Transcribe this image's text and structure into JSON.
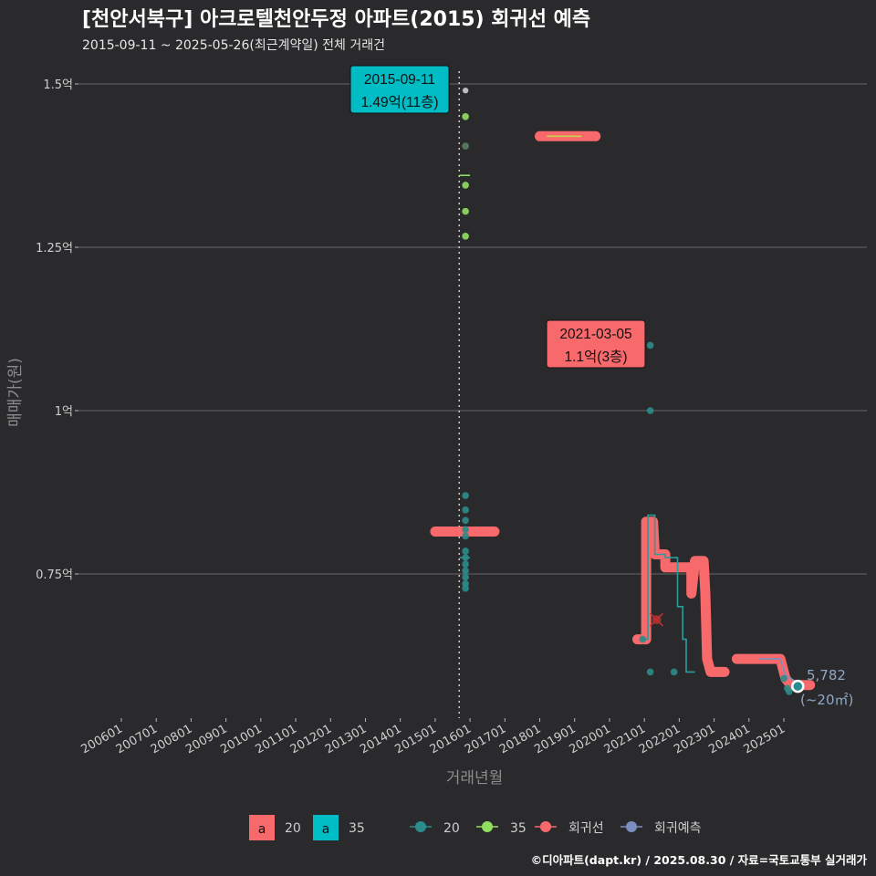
{
  "chart_data": {
    "type": "line",
    "title": "[천안서북구] 아크로텔천안두정 아파트(2015) 회귀선 예측",
    "subtitle": "2015-09-11 ~ 2025-05-26(최근계약일) 전체 거래건",
    "xlabel": "거래년월",
    "ylabel": "매매가(원)",
    "caption": "©디아파트(dapt.kr) / 2025.08.30 / 자료=국토교통부 실거래가",
    "x_range": [
      2006.0,
      2025.9
    ],
    "ylim": [
      0.55,
      1.53
    ],
    "x_ticks": [
      {
        "x": 2006,
        "label": "200601"
      },
      {
        "x": 2007,
        "label": "200701"
      },
      {
        "x": 2008,
        "label": "200801"
      },
      {
        "x": 2009,
        "label": "200901"
      },
      {
        "x": 2010,
        "label": "201001"
      },
      {
        "x": 2011,
        "label": "201101"
      },
      {
        "x": 2012,
        "label": "201201"
      },
      {
        "x": 2013,
        "label": "201301"
      },
      {
        "x": 2014,
        "label": "201401"
      },
      {
        "x": 2015,
        "label": "201501"
      },
      {
        "x": 2016,
        "label": "201601"
      },
      {
        "x": 2017,
        "label": "201701"
      },
      {
        "x": 2018,
        "label": "201801"
      },
      {
        "x": 2019,
        "label": "201901"
      },
      {
        "x": 2020,
        "label": "202001"
      },
      {
        "x": 2021,
        "label": "202101"
      },
      {
        "x": 2022,
        "label": "202201"
      },
      {
        "x": 2023,
        "label": "202301"
      },
      {
        "x": 2024,
        "label": "202401"
      },
      {
        "x": 2025,
        "label": "202501"
      }
    ],
    "y_ticks": [
      {
        "y": 0.75,
        "label": "0.75억"
      },
      {
        "y": 1.0,
        "label": "1억"
      },
      {
        "y": 1.25,
        "label": "1.25억"
      },
      {
        "y": 1.5,
        "label": "1.5억"
      }
    ],
    "vline_x": 2015.69,
    "legend": {
      "labels": [
        {
          "key": "a",
          "name": "20",
          "color": "#f8696b"
        },
        {
          "key": "a",
          "name": "35",
          "color": "#00bcc4"
        }
      ],
      "series": [
        {
          "name": "20",
          "color": "#2a8c8c"
        },
        {
          "name": "35",
          "color": "#90e060"
        },
        {
          "name": "회귀선",
          "color": "#f8696b"
        },
        {
          "name": "회귀예측",
          "color": "#7a8fc0"
        }
      ]
    },
    "scatter_20": [
      [
        2015.87,
        0.87
      ],
      [
        2015.87,
        0.848
      ],
      [
        2015.87,
        0.832
      ],
      [
        2015.87,
        0.818
      ],
      [
        2015.87,
        0.808
      ],
      [
        2015.87,
        0.785
      ],
      [
        2015.87,
        0.775
      ],
      [
        2015.87,
        0.765
      ],
      [
        2015.87,
        0.755
      ],
      [
        2015.87,
        0.745
      ],
      [
        2015.87,
        0.735
      ],
      [
        2015.87,
        0.728
      ],
      [
        2020.95,
        0.65
      ],
      [
        2021.17,
        1.1
      ],
      [
        2021.17,
        1.0
      ],
      [
        2021.17,
        0.6
      ],
      [
        2021.85,
        0.6
      ],
      [
        2025.0,
        0.59
      ],
      [
        2025.1,
        0.575
      ],
      [
        2025.15,
        0.57
      ]
    ],
    "scatter_20_faded": [
      [
        2015.87,
        1.405
      ]
    ],
    "scatter_35": [
      [
        2015.87,
        1.45
      ],
      [
        2015.87,
        1.345
      ],
      [
        2015.87,
        1.305
      ],
      [
        2015.87,
        1.267
      ]
    ],
    "scatter_35_faded": [
      [
        2015.87,
        1.49
      ]
    ],
    "series_20_step": [
      [
        2015.7,
        0.775
      ],
      [
        2016.0,
        0.775
      ]
    ],
    "series_20_line": [
      [
        2020.9,
        0.65
      ],
      [
        2021.1,
        0.65
      ],
      [
        2021.1,
        0.84
      ],
      [
        2021.3,
        0.84
      ],
      [
        2021.3,
        0.78
      ],
      [
        2021.6,
        0.78
      ],
      [
        2021.6,
        0.775
      ],
      [
        2021.95,
        0.775
      ],
      [
        2021.95,
        0.7
      ],
      [
        2022.1,
        0.7
      ],
      [
        2022.1,
        0.65
      ],
      [
        2022.2,
        0.65
      ],
      [
        2022.2,
        0.6
      ],
      [
        2022.45,
        0.6
      ]
    ],
    "series_35_line": [
      [
        2015.7,
        1.36
      ],
      [
        2016.0,
        1.36
      ]
    ],
    "series_35_upper": [
      [
        2018.2,
        1.42
      ],
      [
        2019.2,
        1.42
      ]
    ],
    "regression": [
      {
        "points": [
          [
            2015.0,
            0.815
          ],
          [
            2016.7,
            0.815
          ]
        ]
      },
      {
        "points": [
          [
            2018.0,
            1.42
          ],
          [
            2019.6,
            1.42
          ]
        ]
      },
      {
        "points": [
          [
            2020.8,
            0.65
          ],
          [
            2021.05,
            0.65
          ],
          [
            2021.05,
            0.83
          ],
          [
            2021.25,
            0.83
          ],
          [
            2021.3,
            0.78
          ],
          [
            2021.6,
            0.78
          ],
          [
            2021.6,
            0.76
          ],
          [
            2022.35,
            0.76
          ],
          [
            2022.35,
            0.72
          ],
          [
            2022.45,
            0.77
          ],
          [
            2022.7,
            0.77
          ],
          [
            2022.75,
            0.72
          ],
          [
            2022.8,
            0.62
          ],
          [
            2022.9,
            0.6
          ],
          [
            2023.3,
            0.6
          ]
        ]
      },
      {
        "points": [
          [
            2023.65,
            0.62
          ],
          [
            2024.9,
            0.62
          ],
          [
            2025.05,
            0.59
          ],
          [
            2025.2,
            0.58
          ],
          [
            2025.75,
            0.58
          ]
        ]
      }
    ],
    "regression_pred": [
      [
        2024.3,
        0.62
      ],
      [
        2024.9,
        0.62
      ],
      [
        2025.05,
        0.595
      ],
      [
        2025.35,
        0.585
      ]
    ],
    "cross_marker": [
      2021.35,
      0.68
    ],
    "end_point": [
      2025.4,
      0.578
    ],
    "callouts": [
      {
        "x": 2015.69,
        "y": 1.49,
        "date": "2015-09-11",
        "value": "1.49억(11층)",
        "color": "#00bcc4"
      },
      {
        "x": 2021.17,
        "y": 1.1,
        "date": "2021-03-05",
        "value": "1.1억(3층)",
        "color": "#f8696b"
      }
    ],
    "end_label": {
      "value": "5,782",
      "area": "(~20㎡)"
    }
  }
}
